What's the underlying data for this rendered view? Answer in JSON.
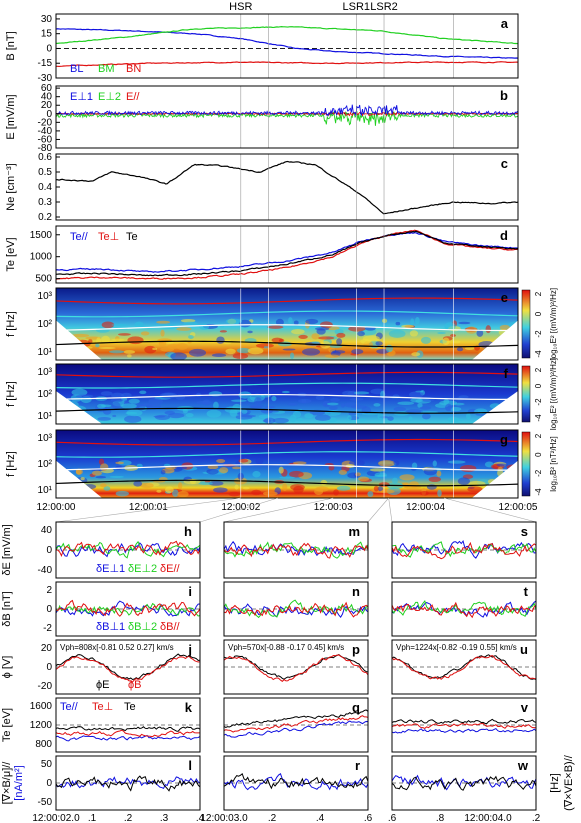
{
  "colors": {
    "blue": "#1010e0",
    "green": "#20d020",
    "red": "#e01010",
    "black": "#000000",
    "cyan": "#40e0e0"
  },
  "chart_data": {
    "type": "line",
    "event_labels": [
      "HSR",
      "LSR1",
      "LSR2"
    ],
    "event_times": [
      2.0,
      3.25,
      3.55
    ],
    "x_range": [
      0,
      5
    ],
    "x_ticks": [
      "12:00:00",
      "12:00:01",
      "12:00:02",
      "12:00:03",
      "12:00:04",
      "12:00:05"
    ],
    "panels": [
      {
        "id": "a",
        "ylabel": "B [nT]",
        "yticks": [
          "30",
          "15",
          "0",
          "-15",
          "-30"
        ],
        "ylim": [
          -30,
          35
        ],
        "legend": [
          "BL",
          "BM",
          "BN"
        ],
        "series": [
          {
            "name": "BL",
            "color": "blue",
            "points": [
              [
                0,
                20
              ],
              [
                0.8,
                18
              ],
              [
                1.5,
                15
              ],
              [
                2.0,
                10
              ],
              [
                2.3,
                5
              ],
              [
                2.6,
                0
              ],
              [
                3.0,
                -3
              ],
              [
                3.5,
                -5
              ],
              [
                4.2,
                -8
              ],
              [
                5,
                -10
              ]
            ]
          },
          {
            "name": "BM",
            "color": "green",
            "points": [
              [
                0,
                5
              ],
              [
                0.8,
                12
              ],
              [
                1.5,
                20
              ],
              [
                2.0,
                21
              ],
              [
                2.5,
                22
              ],
              [
                3.0,
                20
              ],
              [
                3.5,
                18
              ],
              [
                4.2,
                10
              ],
              [
                5,
                5
              ]
            ]
          },
          {
            "name": "BN",
            "color": "red",
            "points": [
              [
                0,
                -18
              ],
              [
                1,
                -15
              ],
              [
                2,
                -14
              ],
              [
                3,
                -15
              ],
              [
                4,
                -14
              ],
              [
                5,
                -14
              ]
            ]
          }
        ]
      },
      {
        "id": "b",
        "ylabel": "E [mV/m]",
        "yticks": [
          "60",
          "40",
          "20",
          "0",
          "-20",
          "-40",
          "-60",
          "-80"
        ],
        "ylim": [
          -80,
          65
        ],
        "legend": [
          "E⊥1",
          "E⊥2",
          "E//"
        ]
      },
      {
        "id": "c",
        "ylabel": "Ne [cm⁻³]",
        "yticks": [
          "0.6",
          "0.5",
          "0.4",
          "0.3",
          "0.2"
        ],
        "ylim": [
          0.18,
          0.62
        ],
        "series": [
          {
            "name": "Ne",
            "color": "black",
            "points": [
              [
                0,
                0.45
              ],
              [
                0.4,
                0.44
              ],
              [
                0.6,
                0.5
              ],
              [
                0.9,
                0.47
              ],
              [
                1.2,
                0.42
              ],
              [
                1.5,
                0.55
              ],
              [
                1.8,
                0.54
              ],
              [
                2.2,
                0.5
              ],
              [
                2.5,
                0.57
              ],
              [
                2.8,
                0.55
              ],
              [
                3.0,
                0.47
              ],
              [
                3.3,
                0.35
              ],
              [
                3.55,
                0.22
              ],
              [
                3.9,
                0.26
              ],
              [
                4.3,
                0.3
              ],
              [
                4.7,
                0.29
              ],
              [
                5,
                0.3
              ]
            ]
          }
        ]
      },
      {
        "id": "d",
        "ylabel": "Te [eV]",
        "yticks": [
          "1500",
          "1000",
          "500"
        ],
        "ylim": [
          400,
          1700
        ],
        "legend": [
          "Te//",
          "Te⊥",
          "Te"
        ],
        "series": [
          {
            "name": "Te//",
            "color": "blue",
            "points": [
              [
                0,
                700
              ],
              [
                0.5,
                720
              ],
              [
                1.0,
                650
              ],
              [
                1.5,
                700
              ],
              [
                2.0,
                780
              ],
              [
                2.5,
                900
              ],
              [
                3.0,
                1100
              ],
              [
                3.3,
                1350
              ],
              [
                3.6,
                1500
              ],
              [
                3.9,
                1550
              ],
              [
                4.2,
                1350
              ],
              [
                4.6,
                1250
              ],
              [
                5,
                1200
              ]
            ]
          },
          {
            "name": "Te⊥",
            "color": "red",
            "points": [
              [
                0,
                500
              ],
              [
                0.5,
                530
              ],
              [
                1.0,
                500
              ],
              [
                1.5,
                520
              ],
              [
                2.0,
                600
              ],
              [
                2.5,
                750
              ],
              [
                3.0,
                1000
              ],
              [
                3.3,
                1300
              ],
              [
                3.6,
                1500
              ],
              [
                3.9,
                1600
              ],
              [
                4.2,
                1300
              ],
              [
                4.6,
                1200
              ],
              [
                5,
                1150
              ]
            ]
          },
          {
            "name": "Te",
            "color": "black",
            "points": [
              [
                0,
                600
              ],
              [
                0.5,
                620
              ],
              [
                1.0,
                570
              ],
              [
                1.5,
                600
              ],
              [
                2.0,
                680
              ],
              [
                2.5,
                830
              ],
              [
                3.0,
                1050
              ],
              [
                3.3,
                1320
              ],
              [
                3.6,
                1500
              ],
              [
                3.9,
                1580
              ],
              [
                4.2,
                1320
              ],
              [
                4.6,
                1230
              ],
              [
                5,
                1180
              ]
            ]
          }
        ]
      },
      {
        "id": "e",
        "ylabel": "f [Hz]",
        "yticks": [
          "10³",
          "10²",
          "10¹"
        ],
        "colorbar_label": "log₁₀E² [(mV/m)²/Hz]",
        "cbticks": [
          "2",
          "0",
          "-2",
          "-4"
        ]
      },
      {
        "id": "f",
        "ylabel": "f [Hz]",
        "yticks": [
          "10³",
          "10²",
          "10¹"
        ],
        "colorbar_label": "log₁₀E² [(mV/m)²/Hz]",
        "cbticks": [
          "2",
          "0",
          "-2",
          "-4"
        ]
      },
      {
        "id": "g",
        "ylabel": "f [Hz]",
        "yticks": [
          "10³",
          "10²",
          "10¹"
        ],
        "colorbar_label": "log₁₀B² [nT²/Hz]",
        "cbticks": [
          "2",
          "0",
          "-2",
          "-4"
        ]
      }
    ],
    "zoom_columns": [
      {
        "x_ticks": [
          "12:00:02.0",
          ".1",
          ".2",
          ".3",
          ".4"
        ],
        "panels": [
          {
            "id": "h",
            "ylabel": "δE [mV/m]",
            "yticks": [
              "40",
              "0",
              "-40"
            ],
            "legend": [
              "δE⊥1",
              "δE⊥2",
              "δE//"
            ]
          },
          {
            "id": "i",
            "ylabel": "δB [nT]",
            "yticks": [
              "2",
              "0",
              "-2"
            ],
            "legend": [
              "δB⊥1",
              "δB⊥2",
              "δB//"
            ]
          },
          {
            "id": "j",
            "ylabel": "ϕ [V]",
            "yticks": [
              "20",
              "0",
              "-20"
            ],
            "annotation": "Vph=808x[-0.81 0.52 0.27] km/s",
            "legend": [
              "ϕE",
              "ϕB"
            ]
          },
          {
            "id": "k",
            "ylabel": "Te [eV]",
            "yticks": [
              "1600",
              "1200",
              "800"
            ],
            "legend": [
              "Te//",
              "Te⊥",
              "Te"
            ]
          },
          {
            "id": "l",
            "ylabel": "[∇×B/μ]//",
            "ylabel2": "[nA/m²]",
            "yticks": [
              "50",
              "0",
              "-50"
            ]
          }
        ]
      },
      {
        "x_ticks": [
          "12:00:03.0",
          ".2",
          ".4",
          ".6"
        ],
        "panels": [
          {
            "id": "m"
          },
          {
            "id": "n"
          },
          {
            "id": "p",
            "annotation": "Vph=570x[-0.88 -0.17 0.45] km/s"
          },
          {
            "id": "q"
          },
          {
            "id": "r"
          }
        ]
      },
      {
        "x_ticks": [
          ".6",
          ".8",
          "12:00:04.0",
          ".2"
        ],
        "panels": [
          {
            "id": "s"
          },
          {
            "id": "t"
          },
          {
            "id": "u",
            "annotation": "Vph=1224x[-0.82 -0.19 0.55] km/s"
          },
          {
            "id": "v"
          },
          {
            "id": "w",
            "ylabel": "[Hz]",
            "ylabel2": "(∇×VE×B)//"
          }
        ]
      }
    ]
  }
}
